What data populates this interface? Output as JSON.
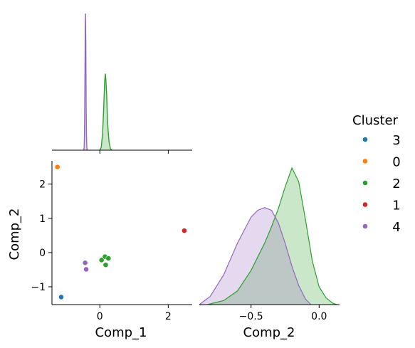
{
  "chart_data": {
    "type": "scatter",
    "variables": [
      "Comp_1",
      "Comp_2"
    ],
    "legend": {
      "title": "Cluster",
      "position": "right",
      "entries": [
        {
          "label": "3",
          "color": "#1f77b4"
        },
        {
          "label": "0",
          "color": "#ff7f0e"
        },
        {
          "label": "2",
          "color": "#2ca02c"
        },
        {
          "label": "1",
          "color": "#d62728"
        },
        {
          "label": "4",
          "color": "#9467bd"
        }
      ]
    },
    "scatter_panel": {
      "xlabel": "Comp_1",
      "ylabel": "Comp_2",
      "xlim": [
        -1.4,
        2.7
      ],
      "ylim": [
        -1.52,
        2.68
      ],
      "xticks": [
        0,
        2
      ],
      "yticks": [
        -1,
        0,
        1,
        2
      ],
      "points": [
        {
          "cluster": "3",
          "x": -1.13,
          "y": -1.3
        },
        {
          "cluster": "0",
          "x": -1.24,
          "y": 2.5
        },
        {
          "cluster": "2",
          "x": 0.15,
          "y": -0.12
        },
        {
          "cluster": "2",
          "x": 0.25,
          "y": -0.17
        },
        {
          "cluster": "2",
          "x": 0.05,
          "y": -0.22
        },
        {
          "cluster": "2",
          "x": 0.17,
          "y": -0.36
        },
        {
          "cluster": "1",
          "x": 2.47,
          "y": 0.64
        },
        {
          "cluster": "4",
          "x": -0.43,
          "y": -0.3
        },
        {
          "cluster": "4",
          "x": -0.4,
          "y": -0.49
        }
      ]
    },
    "kde_comp1": {
      "xlim": [
        -1.4,
        2.7
      ],
      "xticks": [
        0,
        2
      ],
      "curves": [
        {
          "cluster": "4",
          "x": [
            -0.47,
            -0.46,
            -0.45,
            -0.44,
            -0.43,
            -0.425,
            -0.42,
            -0.415,
            -0.41,
            -0.4,
            -0.39,
            -0.38,
            -0.37
          ],
          "density": [
            0.0,
            0.02,
            0.1,
            0.35,
            0.75,
            0.92,
            1.0,
            0.92,
            0.75,
            0.35,
            0.1,
            0.02,
            0.0
          ]
        },
        {
          "cluster": "2",
          "x": [
            0.0,
            0.04,
            0.08,
            0.11,
            0.14,
            0.16,
            0.18,
            0.2,
            0.22,
            0.24,
            0.27,
            0.31,
            0.35
          ],
          "density": [
            0.0,
            0.02,
            0.12,
            0.3,
            0.5,
            0.56,
            0.5,
            0.4,
            0.25,
            0.15,
            0.06,
            0.01,
            0.0
          ]
        }
      ]
    },
    "kde_comp2": {
      "xlabel": "Comp_2",
      "xlim": [
        -0.88,
        0.15
      ],
      "ylim": [
        -1.52,
        2.68
      ],
      "xticks": [
        -0.5,
        0.0
      ],
      "xtick_labels": [
        "−0.5",
        "0.0"
      ],
      "curves": [
        {
          "cluster": "2",
          "x": [
            -0.82,
            -0.7,
            -0.6,
            -0.5,
            -0.45,
            -0.4,
            -0.35,
            -0.3,
            -0.25,
            -0.2,
            -0.15,
            -0.1,
            -0.05,
            0.0,
            0.05,
            0.1,
            0.13
          ],
          "density": [
            0.0,
            0.03,
            0.1,
            0.25,
            0.35,
            0.45,
            0.57,
            0.7,
            0.86,
            1.0,
            0.9,
            0.62,
            0.32,
            0.13,
            0.05,
            0.01,
            0.0
          ]
        },
        {
          "cluster": "4",
          "x": [
            -0.88,
            -0.8,
            -0.7,
            -0.6,
            -0.5,
            -0.45,
            -0.4,
            -0.35,
            -0.3,
            -0.25,
            -0.2,
            -0.15,
            -0.1,
            -0.06
          ],
          "density": [
            0.0,
            0.06,
            0.22,
            0.45,
            0.64,
            0.69,
            0.71,
            0.69,
            0.6,
            0.45,
            0.28,
            0.14,
            0.04,
            0.0
          ]
        }
      ]
    }
  }
}
